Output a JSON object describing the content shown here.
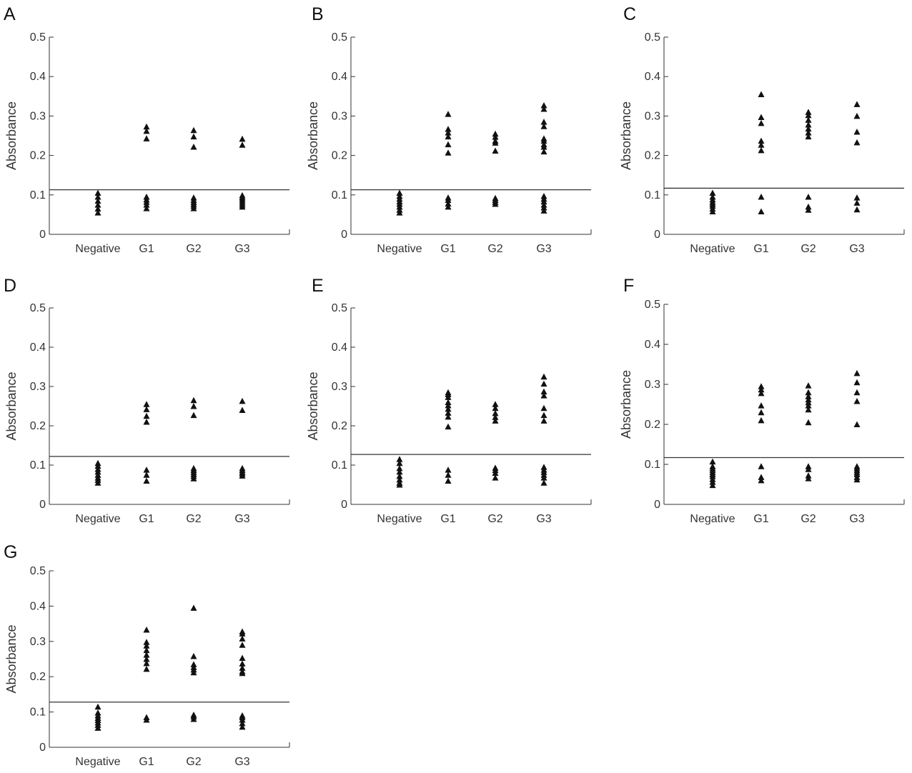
{
  "chart_data": [
    {
      "panel": "A",
      "type": "scatter",
      "ylabel": "Absorbance",
      "ylim": [
        0,
        0.5
      ],
      "yticks": [
        "0",
        "0.1",
        "0.2",
        "0.3",
        "0.4",
        "0.5"
      ],
      "categories": [
        "Negative",
        "G1",
        "G2",
        "G3"
      ],
      "cutoff": 0.113,
      "points": [
        [
          0.105,
          0.095,
          0.085,
          0.075,
          0.065,
          0.055
        ],
        [
          0.273,
          0.262,
          0.243,
          0.095,
          0.088,
          0.082,
          0.075,
          0.066
        ],
        [
          0.264,
          0.248,
          0.222,
          0.093,
          0.087,
          0.082,
          0.077,
          0.072,
          0.066
        ],
        [
          0.242,
          0.227,
          0.099,
          0.094,
          0.09,
          0.085,
          0.08,
          0.075,
          0.07
        ]
      ]
    },
    {
      "panel": "B",
      "type": "scatter",
      "ylabel": "Absorbance",
      "ylim": [
        0,
        0.5
      ],
      "yticks": [
        "0",
        "0.1",
        "0.2",
        "0.3",
        "0.4",
        "0.5"
      ],
      "categories": [
        "Negative",
        "G1",
        "G2",
        "G3"
      ],
      "cutoff": 0.113,
      "points": [
        [
          0.105,
          0.097,
          0.09,
          0.083,
          0.077,
          0.07,
          0.062,
          0.055
        ],
        [
          0.305,
          0.267,
          0.258,
          0.248,
          0.228,
          0.207,
          0.093,
          0.087,
          0.078,
          0.07
        ],
        [
          0.255,
          0.247,
          0.237,
          0.232,
          0.212,
          0.092,
          0.087,
          0.082,
          0.077
        ],
        [
          0.327,
          0.318,
          0.285,
          0.274,
          0.243,
          0.237,
          0.228,
          0.222,
          0.21,
          0.097,
          0.09,
          0.083,
          0.075,
          0.068,
          0.06
        ]
      ]
    },
    {
      "panel": "C",
      "type": "scatter",
      "ylabel": "Absorbance",
      "ylim": [
        0,
        0.5
      ],
      "yticks": [
        "0",
        "0.1",
        "0.2",
        "0.3",
        "0.4",
        "0.5"
      ],
      "categories": [
        "Negative",
        "G1",
        "G2",
        "G3"
      ],
      "cutoff": 0.117,
      "points": [
        [
          0.105,
          0.095,
          0.088,
          0.082,
          0.077,
          0.072,
          0.065,
          0.058
        ],
        [
          0.355,
          0.297,
          0.282,
          0.237,
          0.227,
          0.213,
          0.095,
          0.058
        ],
        [
          0.31,
          0.302,
          0.29,
          0.278,
          0.268,
          0.258,
          0.248,
          0.095,
          0.07,
          0.062
        ],
        [
          0.33,
          0.3,
          0.26,
          0.233,
          0.093,
          0.08,
          0.063
        ]
      ]
    },
    {
      "panel": "D",
      "type": "scatter",
      "ylabel": "Absorbance",
      "ylim": [
        0,
        0.5
      ],
      "yticks": [
        "0",
        "0.1",
        "0.2",
        "0.3",
        "0.4",
        "0.5"
      ],
      "categories": [
        "Negative",
        "G1",
        "G2",
        "G3"
      ],
      "cutoff": 0.122,
      "points": [
        [
          0.105,
          0.098,
          0.09,
          0.083,
          0.075,
          0.068,
          0.062,
          0.055
        ],
        [
          0.255,
          0.242,
          0.225,
          0.21,
          0.088,
          0.075,
          0.06
        ],
        [
          0.265,
          0.25,
          0.227,
          0.092,
          0.087,
          0.082,
          0.077,
          0.072,
          0.066
        ],
        [
          0.263,
          0.24,
          0.092,
          0.087,
          0.082,
          0.078,
          0.073
        ]
      ]
    },
    {
      "panel": "E",
      "type": "scatter",
      "ylabel": "Absorbance",
      "ylim": [
        0,
        0.5
      ],
      "yticks": [
        "0",
        "0.1",
        "0.2",
        "0.3",
        "0.4",
        "0.5"
      ],
      "categories": [
        "Negative",
        "G1",
        "G2",
        "G3"
      ],
      "cutoff": 0.127,
      "points": [
        [
          0.115,
          0.105,
          0.092,
          0.083,
          0.072,
          0.063,
          0.055,
          0.05
        ],
        [
          0.285,
          0.28,
          0.273,
          0.26,
          0.252,
          0.243,
          0.233,
          0.223,
          0.198,
          0.088,
          0.075,
          0.06
        ],
        [
          0.255,
          0.245,
          0.232,
          0.222,
          0.213,
          0.093,
          0.087,
          0.08,
          0.068
        ],
        [
          0.325,
          0.307,
          0.287,
          0.277,
          0.245,
          0.227,
          0.213,
          0.095,
          0.088,
          0.082,
          0.075,
          0.068,
          0.055
        ]
      ]
    },
    {
      "panel": "F",
      "type": "scatter",
      "ylabel": "Absorbance",
      "ylim": [
        0,
        0.5
      ],
      "yticks": [
        "0",
        "0.1",
        "0.2",
        "0.3",
        "0.4",
        "0.5"
      ],
      "categories": [
        "Negative",
        "G1",
        "G2",
        "G3"
      ],
      "cutoff": 0.117,
      "points": [
        [
          0.107,
          0.095,
          0.09,
          0.085,
          0.08,
          0.075,
          0.07,
          0.063,
          0.056,
          0.048
        ],
        [
          0.295,
          0.287,
          0.278,
          0.247,
          0.23,
          0.21,
          0.095,
          0.068,
          0.06
        ],
        [
          0.297,
          0.28,
          0.27,
          0.262,
          0.255,
          0.247,
          0.237,
          0.205,
          0.095,
          0.088,
          0.072,
          0.065
        ],
        [
          0.328,
          0.305,
          0.28,
          0.258,
          0.2,
          0.095,
          0.09,
          0.085,
          0.08,
          0.075,
          0.068,
          0.062
        ]
      ]
    },
    {
      "panel": "G",
      "type": "scatter",
      "ylabel": "Absorbance",
      "ylim": [
        0,
        0.5
      ],
      "yticks": [
        "0",
        "0.1",
        "0.2",
        "0.3",
        "0.4",
        "0.5"
      ],
      "categories": [
        "Negative",
        "G1",
        "G2",
        "G3"
      ],
      "cutoff": 0.128,
      "points": [
        [
          0.115,
          0.098,
          0.09,
          0.083,
          0.077,
          0.07,
          0.063,
          0.055
        ],
        [
          0.333,
          0.298,
          0.288,
          0.275,
          0.262,
          0.25,
          0.238,
          0.222,
          0.085,
          0.078
        ],
        [
          0.395,
          0.258,
          0.235,
          0.227,
          0.22,
          0.212,
          0.092,
          0.087,
          0.08
        ],
        [
          0.328,
          0.322,
          0.308,
          0.29,
          0.253,
          0.237,
          0.225,
          0.215,
          0.21,
          0.09,
          0.085,
          0.078,
          0.068,
          0.058
        ]
      ]
    }
  ]
}
